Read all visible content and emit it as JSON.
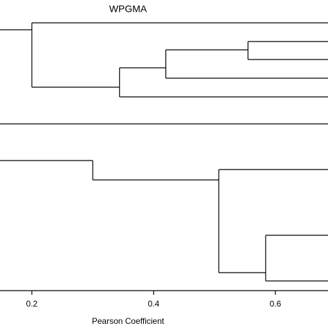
{
  "chart_data": {
    "type": "dendrogram",
    "title": "WPGMA",
    "x_label": "Pearson Coefficient",
    "xlim": [
      0.1477,
      0.6864
    ],
    "xticks": [
      0.2,
      0.4,
      0.6
    ],
    "trees": [
      {
        "merge_heights": [
          0.2,
          0.344,
          0.42,
          0.555
        ]
      },
      {
        "merge_heights": [
          0.3,
          0.507,
          0.584
        ]
      }
    ]
  }
}
